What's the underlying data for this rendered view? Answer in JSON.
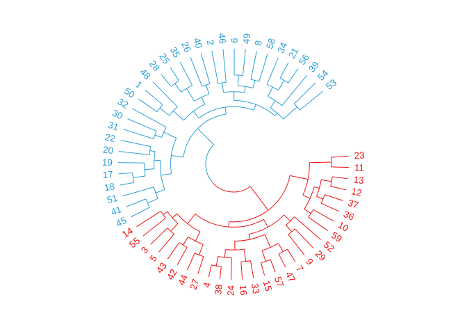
{
  "diagram": {
    "type": "circular-dendrogram",
    "colors": {
      "cluster1": "#ee1111",
      "cluster2": "#2a9fd6"
    },
    "leaves": [
      {
        "label": "23",
        "cluster": 1
      },
      {
        "label": "11",
        "cluster": 1
      },
      {
        "label": "13",
        "cluster": 1
      },
      {
        "label": "12",
        "cluster": 1
      },
      {
        "label": "37",
        "cluster": 1
      },
      {
        "label": "36",
        "cluster": 1
      },
      {
        "label": "10",
        "cluster": 1
      },
      {
        "label": "59",
        "cluster": 1
      },
      {
        "label": "52",
        "cluster": 1
      },
      {
        "label": "29",
        "cluster": 1
      },
      {
        "label": "9",
        "cluster": 1
      },
      {
        "label": "7",
        "cluster": 1
      },
      {
        "label": "47",
        "cluster": 1
      },
      {
        "label": "57",
        "cluster": 1
      },
      {
        "label": "15",
        "cluster": 1
      },
      {
        "label": "33",
        "cluster": 1
      },
      {
        "label": "16",
        "cluster": 1
      },
      {
        "label": "24",
        "cluster": 1
      },
      {
        "label": "38",
        "cluster": 1
      },
      {
        "label": "4",
        "cluster": 1
      },
      {
        "label": "27",
        "cluster": 1
      },
      {
        "label": "44",
        "cluster": 1
      },
      {
        "label": "42",
        "cluster": 1
      },
      {
        "label": "43",
        "cluster": 1
      },
      {
        "label": "5",
        "cluster": 1
      },
      {
        "label": "3",
        "cluster": 1
      },
      {
        "label": "55",
        "cluster": 1
      },
      {
        "label": "14",
        "cluster": 1
      },
      {
        "label": "45",
        "cluster": 2
      },
      {
        "label": "41",
        "cluster": 2
      },
      {
        "label": "51",
        "cluster": 2
      },
      {
        "label": "18",
        "cluster": 2
      },
      {
        "label": "17",
        "cluster": 2
      },
      {
        "label": "19",
        "cluster": 2
      },
      {
        "label": "20",
        "cluster": 2
      },
      {
        "label": "22",
        "cluster": 2
      },
      {
        "label": "31",
        "cluster": 2
      },
      {
        "label": "30",
        "cluster": 2
      },
      {
        "label": "32",
        "cluster": 2
      },
      {
        "label": "50",
        "cluster": 2
      },
      {
        "label": "1",
        "cluster": 2
      },
      {
        "label": "48",
        "cluster": 2
      },
      {
        "label": "28",
        "cluster": 2
      },
      {
        "label": "25",
        "cluster": 2
      },
      {
        "label": "35",
        "cluster": 2
      },
      {
        "label": "26",
        "cluster": 2
      },
      {
        "label": "40",
        "cluster": 2
      },
      {
        "label": "2",
        "cluster": 2
      },
      {
        "label": "46",
        "cluster": 2
      },
      {
        "label": "6",
        "cluster": 2
      },
      {
        "label": "49",
        "cluster": 2
      },
      {
        "label": "8",
        "cluster": 2
      },
      {
        "label": "58",
        "cluster": 2
      },
      {
        "label": "34",
        "cluster": 2
      },
      {
        "label": "21",
        "cluster": 2
      },
      {
        "label": "56",
        "cluster": 2
      },
      {
        "label": "39",
        "cluster": 2
      },
      {
        "label": "54",
        "cluster": 2
      },
      {
        "label": "53",
        "cluster": 2
      }
    ],
    "tree": {
      "h": 1.0,
      "c": [
        {
          "h": 0.66,
          "c": [
            {
              "h": 0.45,
              "c": [
                {
                  "h": 0.2,
                  "c": [
                    "23",
                    "11"
                  ]
                },
                {
                  "h": 0.36,
                  "c": [
                    {
                      "h": 0.3,
                      "c": [
                        {
                          "h": 0.18,
                          "c": [
                            "13",
                            "12"
                          ]
                        },
                        {
                          "h": 0.22,
                          "c": [
                            "37",
                            "36"
                          ]
                        }
                      ]
                    },
                    {
                      "h": 0.27,
                      "c": [
                        "10",
                        "59"
                      ]
                    }
                  ]
                }
              ]
            },
            {
              "h": 0.6,
              "c": [
                {
                  "h": 0.5,
                  "c": [
                    {
                      "h": 0.4,
                      "c": [
                        "52",
                        {
                          "h": 0.3,
                          "c": [
                            "29",
                            "9"
                          ]
                        }
                      ]
                    },
                    {
                      "h": 0.44,
                      "c": [
                        {
                          "h": 0.28,
                          "c": [
                            {
                              "h": 0.17,
                              "c": [
                                "7",
                                "47"
                              ]
                            },
                            {
                              "h": 0.15,
                              "c": [
                                "57",
                                "15"
                              ]
                            }
                          ]
                        },
                        {
                          "h": 0.34,
                          "c": [
                            {
                              "h": 0.2,
                              "c": [
                                "33",
                                "16"
                              ]
                            },
                            {
                              "h": 0.25,
                              "c": [
                                "24",
                                {
                                  "h": 0.14,
                                  "c": [
                                    "38",
                                    "4"
                                  ]
                                }
                              ]
                            }
                          ]
                        }
                      ]
                    }
                  ]
                },
                {
                  "h": 0.46,
                  "c": [
                    {
                      "h": 0.34,
                      "c": [
                        {
                          "h": 0.21,
                          "c": [
                            "27",
                            "44"
                          ]
                        },
                        {
                          "h": 0.23,
                          "c": [
                            "42",
                            "43"
                          ]
                        }
                      ]
                    },
                    {
                      "h": 0.39,
                      "c": [
                        {
                          "h": 0.27,
                          "c": [
                            "5",
                            "3"
                          ]
                        },
                        {
                          "h": 0.33,
                          "c": [
                            "55",
                            "14"
                          ]
                        }
                      ]
                    }
                  ]
                }
              ]
            }
          ]
        },
        {
          "h": 0.74,
          "c": [
            {
              "h": 0.6,
              "c": [
                {
                  "h": 0.48,
                  "c": [
                    {
                      "h": 0.37,
                      "c": [
                        {
                          "h": 0.24,
                          "c": [
                            "45",
                            "41"
                          ]
                        },
                        "51"
                      ]
                    },
                    {
                      "h": 0.41,
                      "c": [
                        {
                          "h": 0.3,
                          "c": [
                            {
                              "h": 0.16,
                              "c": [
                                "18",
                                "17"
                              ]
                            },
                            "19"
                          ]
                        },
                        {
                          "h": 0.35,
                          "c": [
                            "20",
                            "22"
                          ]
                        }
                      ]
                    }
                  ]
                },
                {
                  "h": 0.44,
                  "c": [
                    {
                      "h": 0.36,
                      "c": [
                        "31",
                        "30"
                      ]
                    },
                    "32"
                  ]
                }
              ]
            },
            {
              "h": 0.66,
              "c": [
                {
                  "h": 0.56,
                  "c": [
                    {
                      "h": 0.4,
                      "c": [
                        {
                          "h": 0.26,
                          "c": [
                            "50",
                            "1"
                          ]
                        },
                        "48"
                      ]
                    },
                    {
                      "h": 0.47,
                      "c": [
                        {
                          "h": 0.3,
                          "c": [
                            {
                              "h": 0.18,
                              "c": [
                                "28",
                                "25"
                              ]
                            },
                            "35"
                          ]
                        },
                        {
                          "h": 0.36,
                          "c": [
                            "26",
                            "40"
                          ]
                        }
                      ]
                    }
                  ]
                },
                {
                  "h": 0.59,
                  "c": [
                    {
                      "h": 0.49,
                      "c": [
                        {
                          "h": 0.38,
                          "c": [
                            "2",
                            "46"
                          ]
                        },
                        {
                          "h": 0.42,
                          "c": [
                            {
                              "h": 0.3,
                              "c": [
                                "6",
                                "49"
                              ]
                            },
                            {
                              "h": 0.33,
                              "c": [
                                "8",
                                "58"
                              ]
                            }
                          ]
                        }
                      ]
                    },
                    {
                      "h": 0.55,
                      "c": [
                        {
                          "h": 0.45,
                          "c": [
                            {
                              "h": 0.33,
                              "c": [
                                "34",
                                {
                                  "h": 0.2,
                                  "c": [
                                    "21",
                                    "56"
                                  ]
                                }
                              ]
                            },
                            "39"
                          ]
                        },
                        {
                          "h": 0.34,
                          "c": [
                            "54",
                            "53"
                          ]
                        }
                      ]
                    }
                  ]
                }
              ]
            }
          ]
        }
      ]
    }
  }
}
